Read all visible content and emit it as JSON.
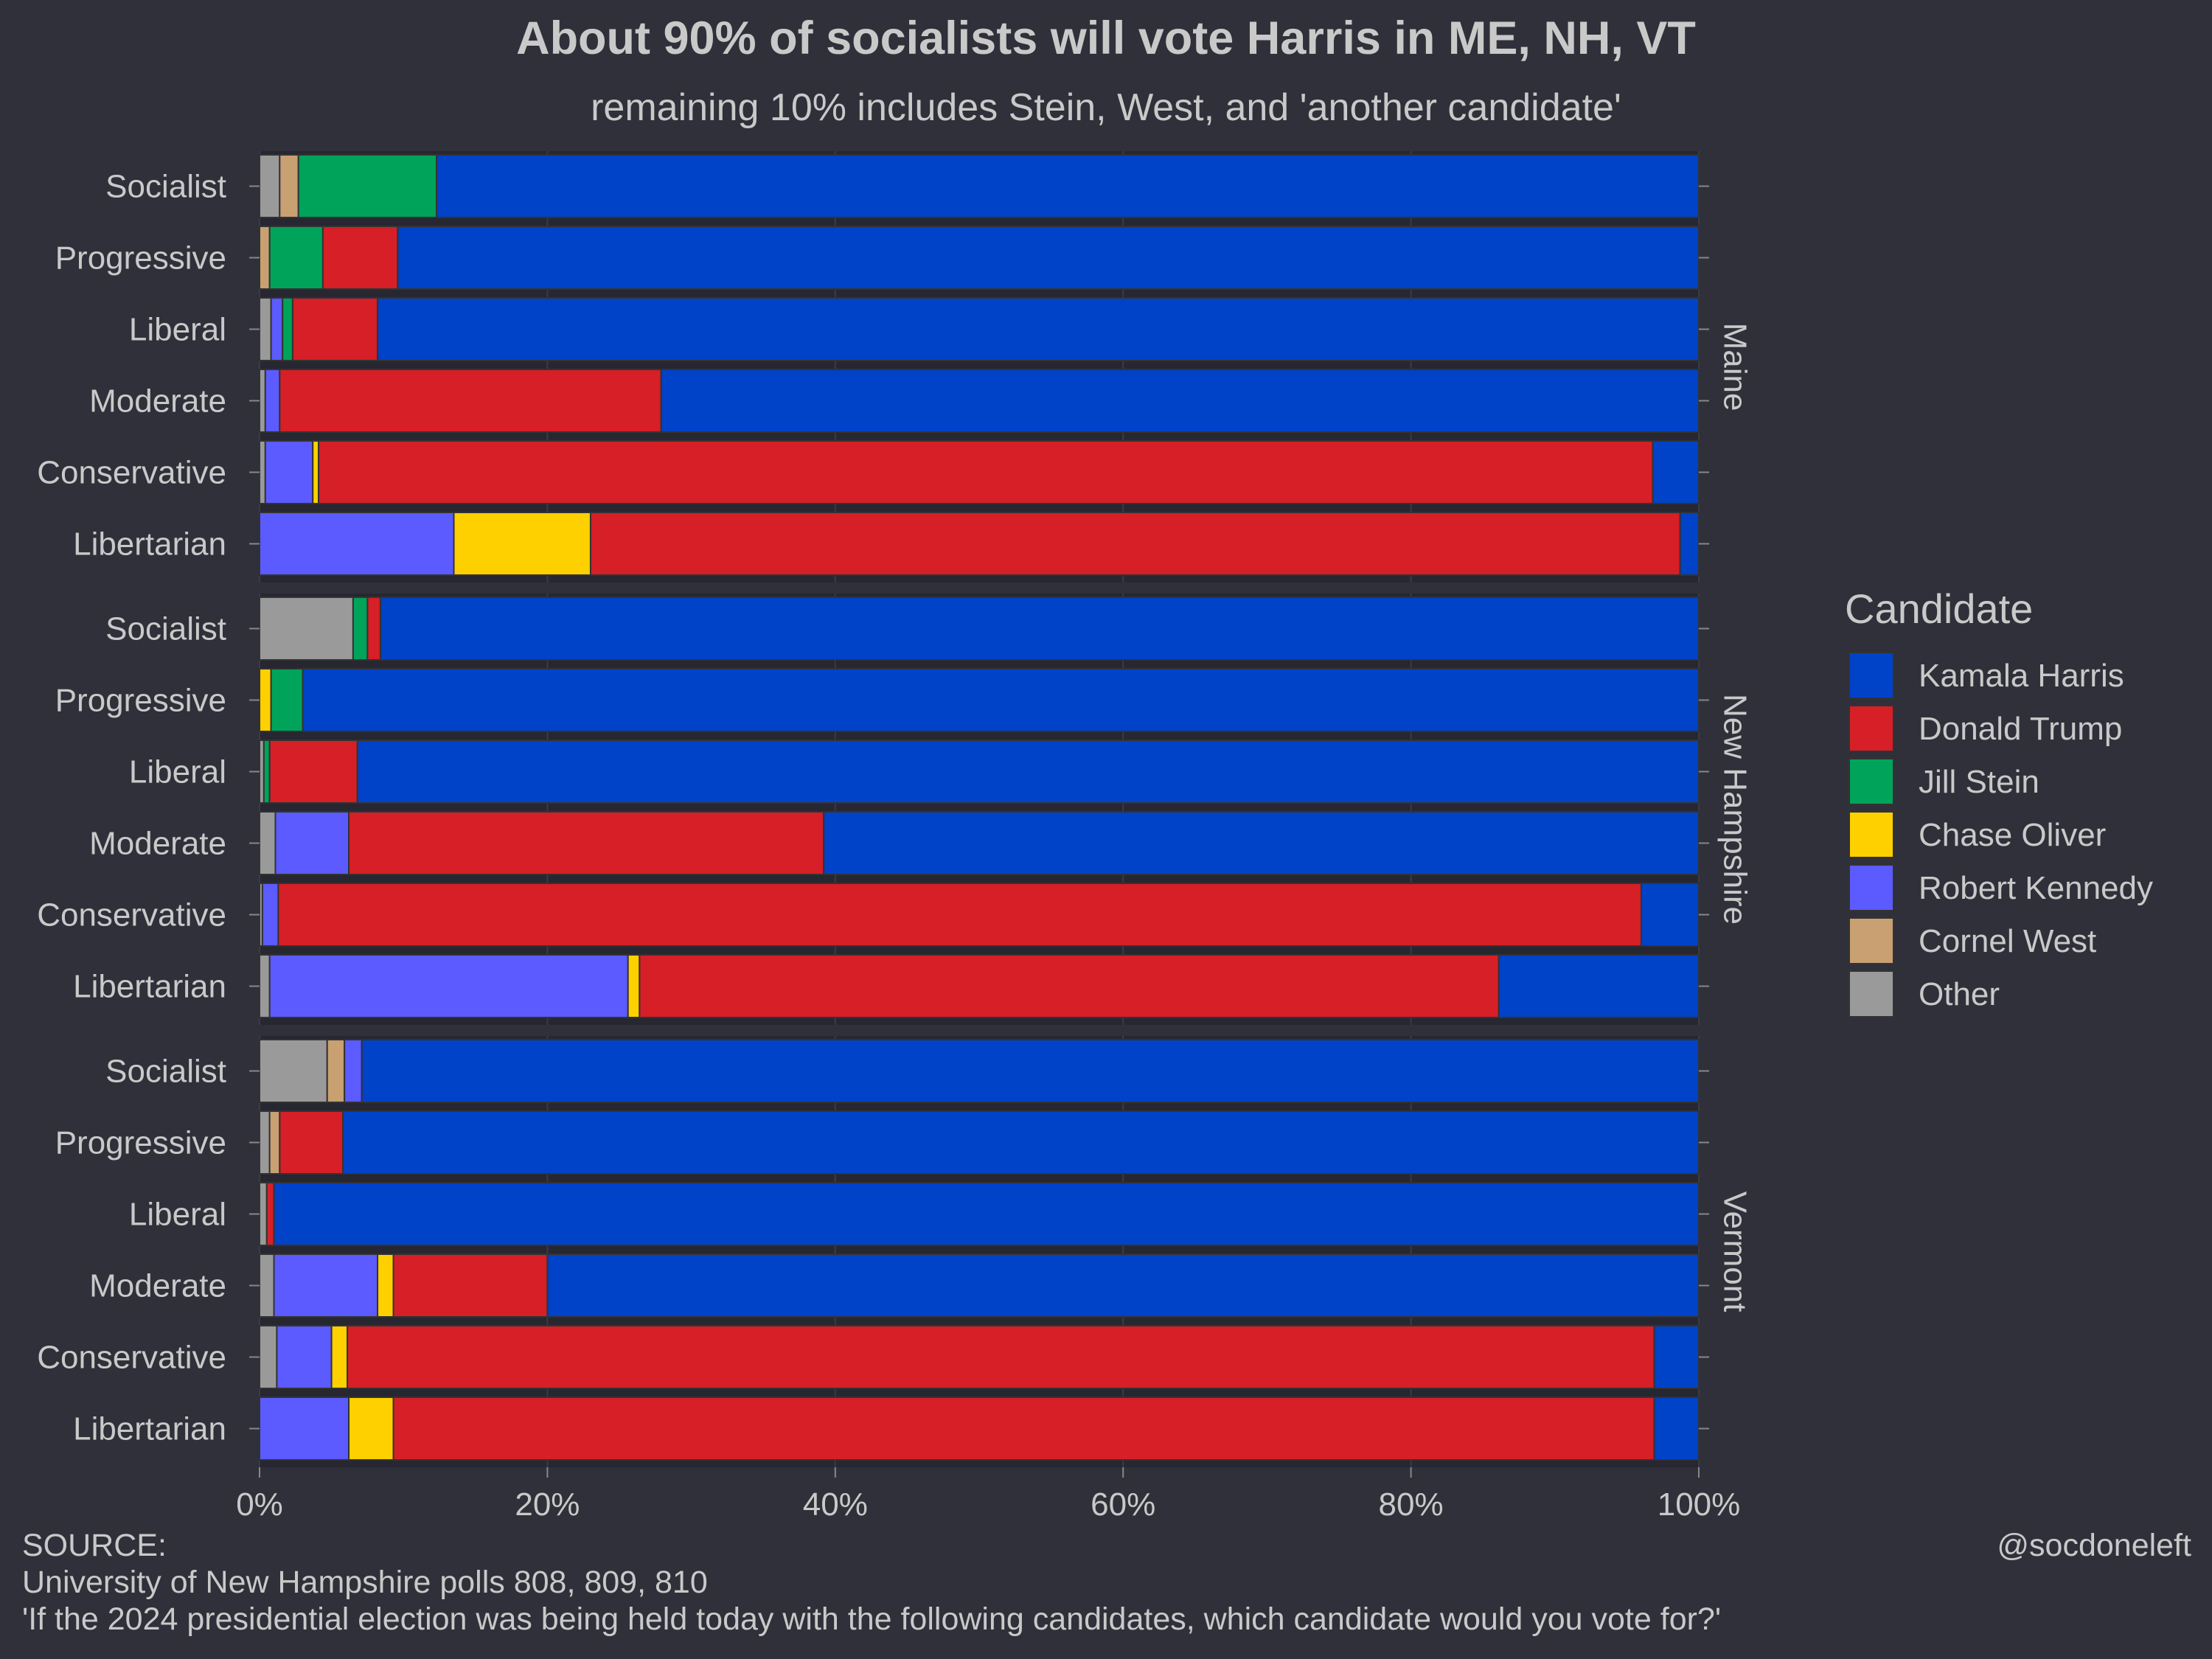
{
  "chart_data": {
    "type": "bar",
    "orientation": "horizontal",
    "stacked": true,
    "title": "About 90% of socialists will vote Harris in ME, NH, VT",
    "subtitle": "remaining 10% includes Stein, West, and 'another candidate'",
    "xlim": [
      0,
      100
    ],
    "x_ticks": [
      "0%",
      "20%",
      "40%",
      "60%",
      "80%",
      "100%"
    ],
    "x_tick_values": [
      0,
      20,
      40,
      60,
      80,
      100
    ],
    "grid": true,
    "legend": {
      "title": "Candidate",
      "placement": "right"
    },
    "stack_order": [
      "Other",
      "Cornel West",
      "Robert Kennedy",
      "Chase Oliver",
      "Jill Stein",
      "Donald Trump",
      "Kamala Harris"
    ],
    "series": [
      {
        "name": "Kamala Harris",
        "color": "#0042c8"
      },
      {
        "name": "Donald Trump",
        "color": "#d61f26"
      },
      {
        "name": "Jill Stein",
        "color": "#00a35a"
      },
      {
        "name": "Chase Oliver",
        "color": "#ffd000"
      },
      {
        "name": "Robert Kennedy",
        "color": "#5b5bff"
      },
      {
        "name": "Cornel West",
        "color": "#c8a072"
      },
      {
        "name": "Other",
        "color": "#9a9a9a"
      }
    ],
    "facets": [
      {
        "name": "Maine",
        "rows": [
          {
            "label": "Socialist",
            "values": {
              "Other": 1.4,
              "Cornel West": 1.3,
              "Robert Kennedy": 0,
              "Chase Oliver": 0,
              "Jill Stein": 9.6,
              "Donald Trump": 0,
              "Kamala Harris": 87.7
            }
          },
          {
            "label": "Progressive",
            "values": {
              "Other": 0,
              "Cornel West": 0.7,
              "Robert Kennedy": 0,
              "Chase Oliver": 0,
              "Jill Stein": 3.7,
              "Donald Trump": 5.2,
              "Kamala Harris": 90.4
            }
          },
          {
            "label": "Liberal",
            "values": {
              "Other": 0.8,
              "Cornel West": 0,
              "Robert Kennedy": 0.8,
              "Chase Oliver": 0,
              "Jill Stein": 0.7,
              "Donald Trump": 5.9,
              "Kamala Harris": 91.8
            }
          },
          {
            "label": "Moderate",
            "values": {
              "Other": 0.4,
              "Cornel West": 0,
              "Robert Kennedy": 1.0,
              "Chase Oliver": 0,
              "Jill Stein": 0,
              "Donald Trump": 26.5,
              "Kamala Harris": 72.1
            }
          },
          {
            "label": "Conservative",
            "values": {
              "Other": 0.4,
              "Cornel West": 0,
              "Robert Kennedy": 3.3,
              "Chase Oliver": 0.4,
              "Jill Stein": 0,
              "Donald Trump": 92.7,
              "Kamala Harris": 3.2
            }
          },
          {
            "label": "Libertarian",
            "values": {
              "Other": 0,
              "Cornel West": 0,
              "Robert Kennedy": 13.5,
              "Chase Oliver": 9.5,
              "Jill Stein": 0,
              "Donald Trump": 75.7,
              "Kamala Harris": 1.3
            }
          }
        ]
      },
      {
        "name": "New Hampshire",
        "rows": [
          {
            "label": "Socialist",
            "values": {
              "Other": 6.5,
              "Cornel West": 0,
              "Robert Kennedy": 0,
              "Chase Oliver": 0,
              "Jill Stein": 1.0,
              "Donald Trump": 0.9,
              "Kamala Harris": 91.6
            }
          },
          {
            "label": "Progressive",
            "values": {
              "Other": 0,
              "Cornel West": 0,
              "Robert Kennedy": 0,
              "Chase Oliver": 0.8,
              "Jill Stein": 2.2,
              "Donald Trump": 0,
              "Kamala Harris": 97.0
            }
          },
          {
            "label": "Liberal",
            "values": {
              "Other": 0.3,
              "Cornel West": 0,
              "Robert Kennedy": 0,
              "Chase Oliver": 0,
              "Jill Stein": 0.4,
              "Donald Trump": 6.1,
              "Kamala Harris": 93.2
            }
          },
          {
            "label": "Moderate",
            "values": {
              "Other": 1.1,
              "Cornel West": 0,
              "Robert Kennedy": 5.1,
              "Chase Oliver": 0,
              "Jill Stein": 0,
              "Donald Trump": 33.0,
              "Kamala Harris": 60.8
            }
          },
          {
            "label": "Conservative",
            "values": {
              "Other": 0.2,
              "Cornel West": 0,
              "Robert Kennedy": 1.1,
              "Chase Oliver": 0,
              "Jill Stein": 0,
              "Donald Trump": 94.7,
              "Kamala Harris": 4.0
            }
          },
          {
            "label": "Libertarian",
            "values": {
              "Other": 0.7,
              "Cornel West": 0,
              "Robert Kennedy": 24.9,
              "Chase Oliver": 0.8,
              "Jill Stein": 0,
              "Donald Trump": 59.7,
              "Kamala Harris": 13.9
            }
          }
        ]
      },
      {
        "name": "Vermont",
        "rows": [
          {
            "label": "Socialist",
            "values": {
              "Other": 4.7,
              "Cornel West": 1.2,
              "Robert Kennedy": 1.2,
              "Chase Oliver": 0,
              "Jill Stein": 0,
              "Donald Trump": 0,
              "Kamala Harris": 92.9
            }
          },
          {
            "label": "Progressive",
            "values": {
              "Other": 0.7,
              "Cornel West": 0.7,
              "Robert Kennedy": 0,
              "Chase Oliver": 0,
              "Jill Stein": 0,
              "Donald Trump": 4.4,
              "Kamala Harris": 94.2
            }
          },
          {
            "label": "Liberal",
            "values": {
              "Other": 0.5,
              "Cornel West": 0,
              "Robert Kennedy": 0,
              "Chase Oliver": 0,
              "Jill Stein": 0,
              "Donald Trump": 0.5,
              "Kamala Harris": 99.0
            }
          },
          {
            "label": "Moderate",
            "values": {
              "Other": 1.0,
              "Cornel West": 0,
              "Robert Kennedy": 7.2,
              "Chase Oliver": 1.1,
              "Jill Stein": 0,
              "Donald Trump": 10.7,
              "Kamala Harris": 80.0
            }
          },
          {
            "label": "Conservative",
            "values": {
              "Other": 1.2,
              "Cornel West": 0,
              "Robert Kennedy": 3.8,
              "Chase Oliver": 1.1,
              "Jill Stein": 0,
              "Donald Trump": 90.8,
              "Kamala Harris": 3.1
            }
          },
          {
            "label": "Libertarian",
            "values": {
              "Other": 0,
              "Cornel West": 0,
              "Robert Kennedy": 6.2,
              "Chase Oliver": 3.1,
              "Jill Stein": 0,
              "Donald Trump": 87.6,
              "Kamala Harris": 3.1
            }
          }
        ]
      }
    ]
  },
  "caption": {
    "source_label": "SOURCE:",
    "source_line1": "University of New Hampshire polls 808, 809, 810",
    "source_line2": "'If the 2024 presidential election was being held today with the following candidates, which candidate would you vote for?'",
    "credit": "@socdoneleft"
  }
}
